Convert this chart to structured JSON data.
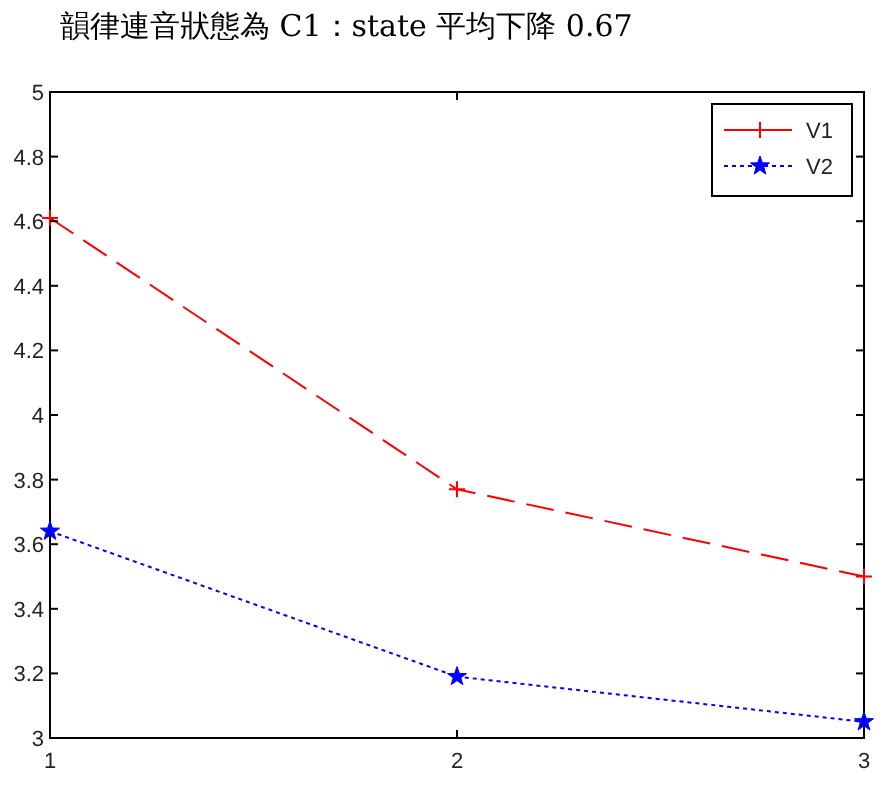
{
  "chart_data": {
    "type": "line",
    "title": "韻律連音狀態為 C1：state 平均下降 0.67",
    "x": [
      1,
      2,
      3
    ],
    "series": [
      {
        "name": "V1",
        "color": "#ff0000",
        "values": [
          4.61,
          3.77,
          3.5
        ],
        "line_style": "dashed",
        "marker": "cross"
      },
      {
        "name": "V2",
        "color": "#0000ff",
        "values": [
          3.64,
          3.19,
          3.05
        ],
        "line_style": "dotted",
        "marker": "star"
      }
    ],
    "xlim": [
      1,
      3
    ],
    "xticks": [
      1,
      2,
      3
    ],
    "ylim": [
      3,
      5
    ],
    "yticks": [
      3,
      3.2,
      3.4,
      3.6,
      3.8,
      4,
      4.2,
      4.4,
      4.6,
      4.8,
      5
    ],
    "grid": false,
    "legend": "top right"
  }
}
